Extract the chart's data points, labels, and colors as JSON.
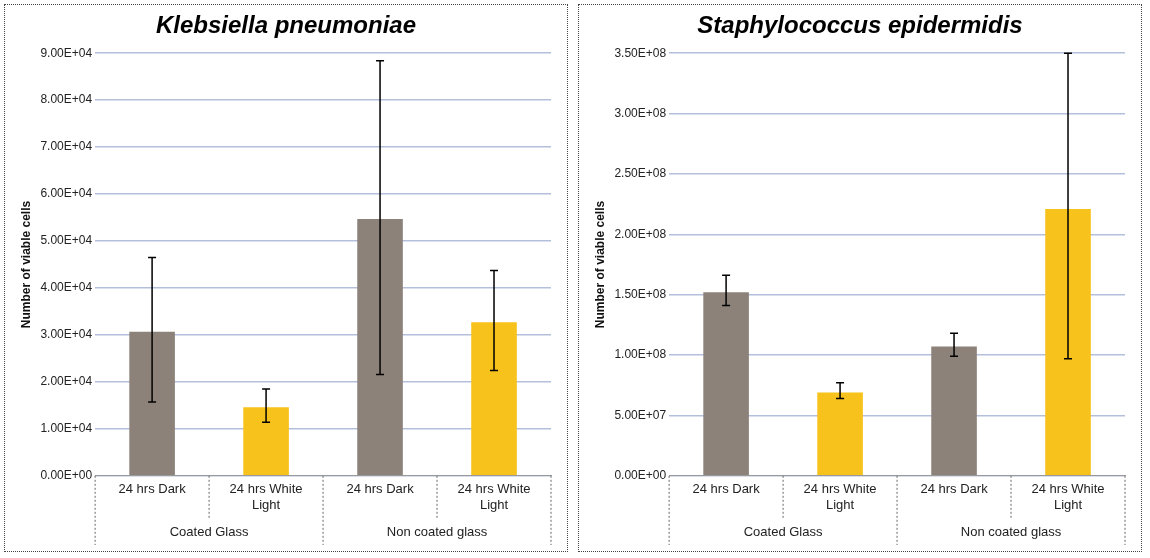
{
  "chart_data": [
    {
      "type": "bar",
      "title": "Klebsiella pneumoniae",
      "ylabel": "Number of viable cells",
      "categories": [
        "24 hrs Dark",
        "24 hrs White Light",
        "24 hrs Dark",
        "24 hrs White Light"
      ],
      "values": [
        30700,
        14600,
        54700,
        32700
      ],
      "errors": [
        [
          15700,
          46500
        ],
        [
          11400,
          18500
        ],
        [
          21600,
          88400
        ],
        [
          22400,
          43700
        ]
      ],
      "colors": [
        "#8c8279",
        "#f7c21b",
        "#8c8279",
        "#f7c21b"
      ],
      "annotations": [
        "Coated Glass",
        "Non coated glass"
      ],
      "ylim": [
        0,
        90000
      ],
      "yticks": [
        {
          "value": 0,
          "label": "0.00E+00"
        },
        {
          "value": 10000,
          "label": "1.00E+04"
        },
        {
          "value": 20000,
          "label": "2.00E+04"
        },
        {
          "value": 30000,
          "label": "3.00E+04"
        },
        {
          "value": 40000,
          "label": "4.00E+04"
        },
        {
          "value": 50000,
          "label": "5.00E+04"
        },
        {
          "value": 60000,
          "label": "6.00E+04"
        },
        {
          "value": 70000,
          "label": "7.00E+04"
        },
        {
          "value": 80000,
          "label": "8.00E+04"
        },
        {
          "value": 90000,
          "label": "9.00E+04"
        }
      ],
      "grid": "y"
    },
    {
      "type": "bar",
      "title": "Staphylococcus epidermidis",
      "ylabel": "Number of viable cells",
      "categories": [
        "24 hrs Dark",
        "24 hrs White Light",
        "24 hrs Dark",
        "24 hrs White Light"
      ],
      "values": [
        152000000,
        69000000,
        107000000,
        221000000
      ],
      "errors": [
        [
          141000000,
          166000000
        ],
        [
          64000000,
          77000000
        ],
        [
          99000000,
          118000000
        ],
        [
          97000000,
          350000000
        ]
      ],
      "colors": [
        "#8c8279",
        "#f7c21b",
        "#8c8279",
        "#f7c21b"
      ],
      "annotations": [
        "Coated Glass",
        "Non coated glass"
      ],
      "ylim": [
        0,
        350000000
      ],
      "yticks": [
        {
          "value": 0,
          "label": "0.00E+00"
        },
        {
          "value": 50000000,
          "label": "5.00E+07"
        },
        {
          "value": 100000000,
          "label": "1.00E+08"
        },
        {
          "value": 150000000,
          "label": "1.50E+08"
        },
        {
          "value": 200000000,
          "label": "2.00E+08"
        },
        {
          "value": 250000000,
          "label": "2.50E+08"
        },
        {
          "value": 300000000,
          "label": "3.00E+08"
        },
        {
          "value": 350000000,
          "label": "3.50E+08"
        }
      ],
      "grid": "y"
    }
  ]
}
